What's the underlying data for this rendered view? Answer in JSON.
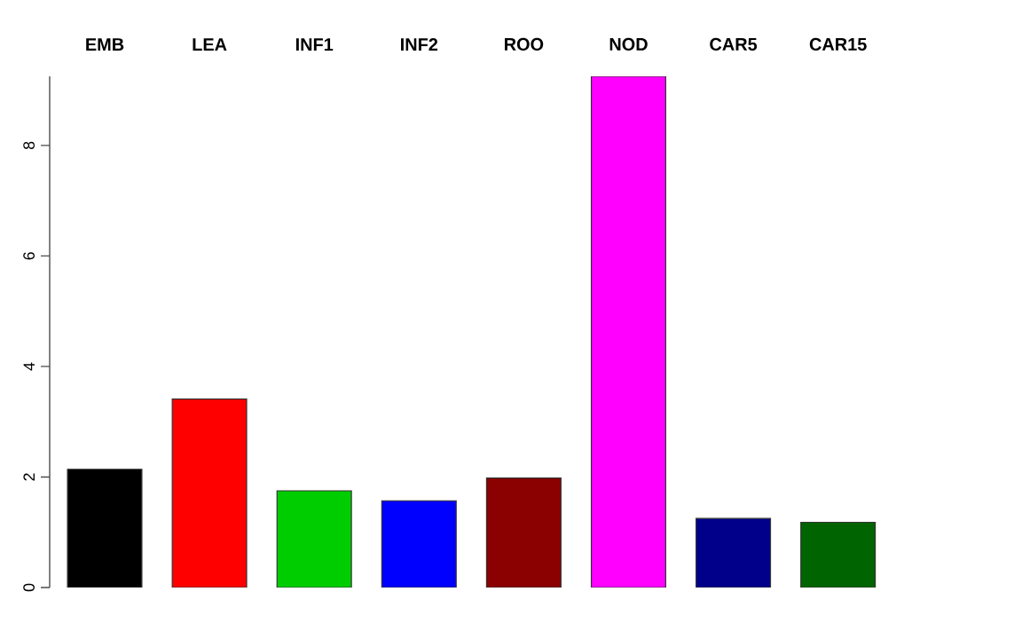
{
  "chart_data": {
    "type": "bar",
    "categories": [
      "EMB",
      "LEA",
      "INF1",
      "INF2",
      "ROO",
      "NOD",
      "CAR5",
      "CAR15"
    ],
    "values": [
      2.14,
      3.41,
      1.75,
      1.57,
      1.98,
      9.25,
      1.25,
      1.18
    ],
    "colors": [
      "#000000",
      "#ff0000",
      "#00cd00",
      "#0000ff",
      "#8b0000",
      "#ff00ff",
      "#00008b",
      "#006400"
    ],
    "ylim": [
      0,
      9.25
    ],
    "yticks": [
      0,
      2,
      4,
      6,
      8
    ]
  }
}
